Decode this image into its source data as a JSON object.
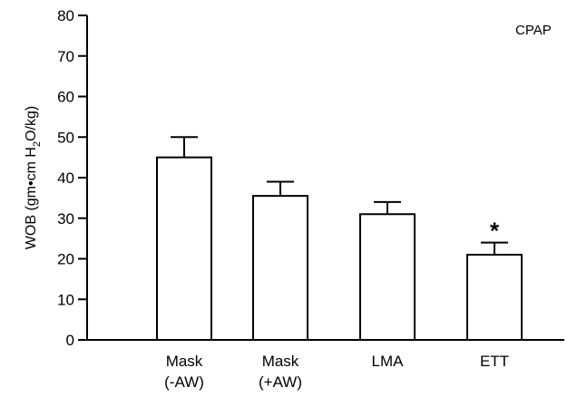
{
  "chart_data": {
    "type": "bar",
    "panel_label": "CPAP",
    "ylabel": {
      "before_sub": "WOB (gm•cm H",
      "sub": "2",
      "after_sub": "O/kg)"
    },
    "ylim": [
      0,
      80
    ],
    "yticks": [
      0,
      10,
      20,
      30,
      40,
      50,
      60,
      70,
      80
    ],
    "categories": [
      [
        "Mask",
        "(-AW)"
      ],
      [
        "Mask",
        "(+AW)"
      ],
      [
        "LMA"
      ],
      [
        "ETT"
      ]
    ],
    "values": [
      45,
      35.5,
      31,
      21
    ],
    "error_upper": [
      50,
      39,
      34,
      24
    ],
    "annotations": [
      "",
      "",
      "",
      "*"
    ],
    "grid": false,
    "legend": "none"
  }
}
